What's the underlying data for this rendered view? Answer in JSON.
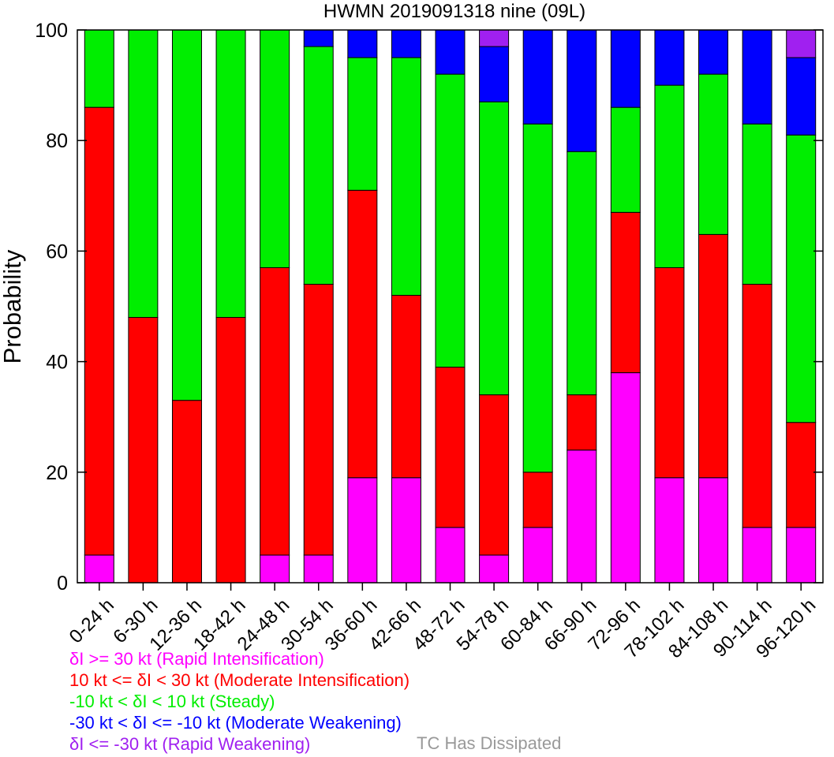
{
  "chart_data": {
    "type": "bar",
    "stacked": true,
    "title": "HWMN 2019091318 nine (09L)",
    "ylabel": "Probability",
    "xlabel": "",
    "ylim": [
      0,
      100
    ],
    "yticks": [
      "0",
      "20",
      "40",
      "60",
      "80",
      "100"
    ],
    "categories": [
      "0-24 h",
      "6-30 h",
      "12-36 h",
      "18-42 h",
      "24-48 h",
      "30-54 h",
      "36-60 h",
      "42-66 h",
      "48-72 h",
      "54-78 h",
      "60-84 h",
      "66-90 h",
      "72-96 h",
      "78-102 h",
      "84-108 h",
      "90-114 h",
      "96-120 h"
    ],
    "series": [
      {
        "name": "δI >= 30 kt (Rapid Intensification)",
        "color": "#ff00ff",
        "values": [
          5,
          0,
          0,
          0,
          5,
          5,
          19,
          19,
          10,
          5,
          10,
          24,
          38,
          19,
          19,
          10,
          10
        ]
      },
      {
        "name": "10 kt <= δI < 30 kt (Moderate Intensification)",
        "color": "#ff0000",
        "values": [
          81,
          48,
          33,
          48,
          52,
          49,
          52,
          33,
          29,
          29,
          10,
          10,
          29,
          38,
          44,
          44,
          19
        ]
      },
      {
        "name": "-10 kt < δI < 10 kt (Steady)",
        "color": "#00ee00",
        "values": [
          14,
          52,
          67,
          52,
          43,
          43,
          24,
          43,
          53,
          53,
          63,
          44,
          19,
          33,
          29,
          29,
          52
        ]
      },
      {
        "name": "-30 kt < δI <= -10 kt (Moderate Weakening)",
        "color": "#0000ff",
        "values": [
          0,
          0,
          0,
          0,
          0,
          3,
          5,
          5,
          8,
          10,
          17,
          22,
          14,
          10,
          8,
          17,
          14
        ]
      },
      {
        "name": "δI <= -30 kt (Rapid Weakening)",
        "color": "#a020f0",
        "values": [
          0,
          0,
          0,
          0,
          0,
          0,
          0,
          0,
          0,
          3,
          0,
          0,
          0,
          0,
          0,
          0,
          5
        ]
      }
    ],
    "extra_legend": {
      "label": "TC Has Dissipated",
      "color": "#999999"
    }
  }
}
